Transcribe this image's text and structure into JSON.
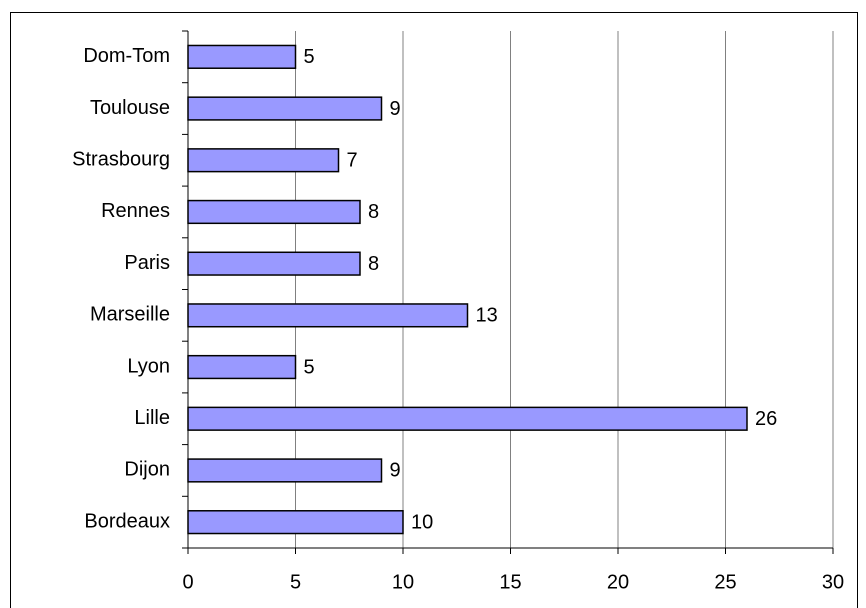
{
  "chart_data": {
    "type": "bar",
    "orientation": "horizontal",
    "categories": [
      "Bordeaux",
      "Dijon",
      "Lille",
      "Lyon",
      "Marseille",
      "Paris",
      "Rennes",
      "Strasbourg",
      "Toulouse",
      "Dom-Tom"
    ],
    "values": [
      10,
      9,
      26,
      5,
      13,
      8,
      8,
      7,
      9,
      5
    ],
    "color": "#9999ff",
    "xlim": [
      0,
      30
    ],
    "xticks": [
      0,
      5,
      10,
      15,
      20,
      25,
      30
    ],
    "grid": true
  }
}
